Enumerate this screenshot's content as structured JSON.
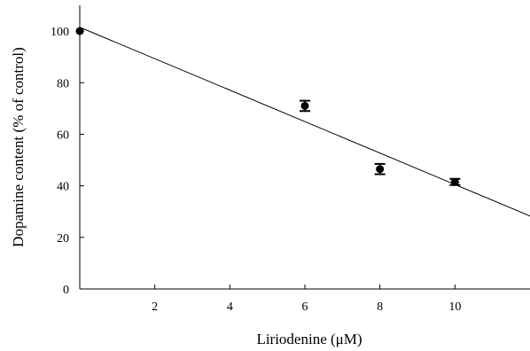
{
  "chart_data": {
    "type": "scatter",
    "xlabel": "Liriodenine (μM)",
    "ylabel": "Dopamine content (% of control)",
    "xlim": [
      0,
      12
    ],
    "ylim": [
      0,
      110
    ],
    "x_ticks": [
      2,
      4,
      6,
      8,
      10
    ],
    "y_ticks": [
      0,
      20,
      40,
      60,
      80,
      100
    ],
    "series": [
      {
        "points": [
          {
            "x": 0,
            "y": 100,
            "err": 0
          },
          {
            "x": 6,
            "y": 71,
            "err": 2
          },
          {
            "x": 8,
            "y": 46.5,
            "err": 2
          },
          {
            "x": 10,
            "y": 41.5,
            "err": 1.2
          }
        ]
      }
    ],
    "fit_line": {
      "intercept": 101.5,
      "slope": -6.1
    },
    "grid": false,
    "colors": {
      "marker": "#000000",
      "line": "#000000"
    }
  }
}
